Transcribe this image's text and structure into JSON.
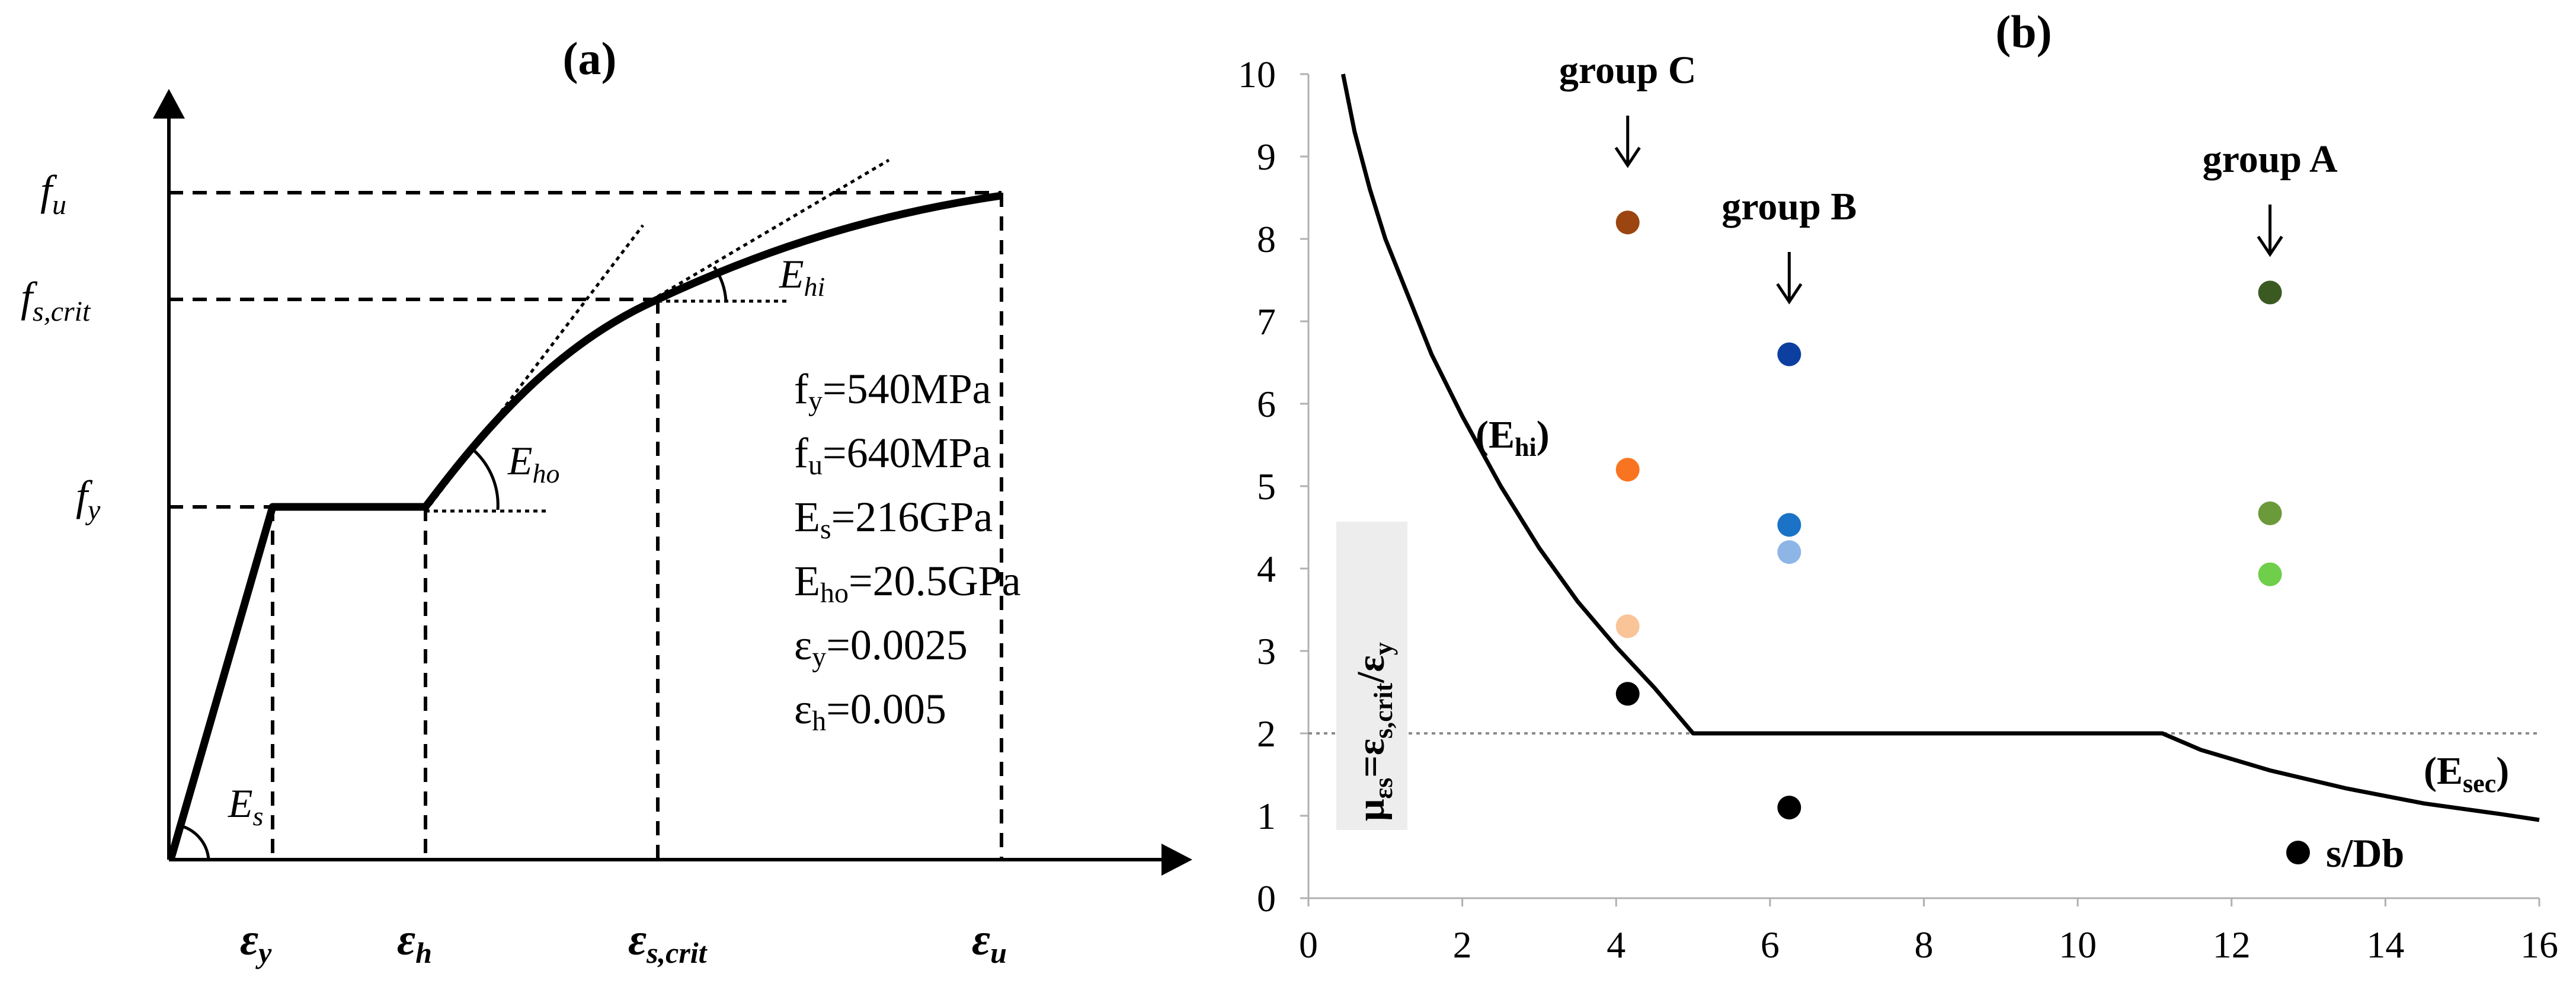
{
  "panel_a": {
    "label": "(a)",
    "y_labels": {
      "fu": {
        "main": "f",
        "sub": "u"
      },
      "fs_crit": {
        "main": "f",
        "sub": "s,crit"
      },
      "fy": {
        "main": "f",
        "sub": "y"
      }
    },
    "x_labels": {
      "ey": {
        "main": "ε",
        "sub": "y"
      },
      "eh": {
        "main": "ε",
        "sub": "h"
      },
      "es_crit": {
        "main": "ε",
        "sub": "s,crit"
      },
      "eu": {
        "main": "ε",
        "sub": "u"
      }
    },
    "angle_labels": {
      "es": {
        "main": "E",
        "sub": "s"
      },
      "eho": {
        "main": "E",
        "sub": "ho"
      },
      "ehi": {
        "main": "E",
        "sub": "hi"
      }
    },
    "properties": [
      {
        "sym": "f",
        "sub": "y",
        "val": "=540MPa"
      },
      {
        "sym": "f",
        "sub": "u",
        "val": "=640MPa"
      },
      {
        "sym": "E",
        "sub": "s",
        "val": "=216GPa"
      },
      {
        "sym": "E",
        "sub": "ho",
        "val": "=20.5GPa"
      },
      {
        "sym": "ε",
        "sub": "y",
        "val": "=0.0025"
      },
      {
        "sym": "ε",
        "sub": "h",
        "val": "=0.005"
      }
    ]
  },
  "chart_data": [
    {
      "type": "line",
      "panel": "(a)",
      "title": "(a)",
      "xlabel": "",
      "ylabel": "",
      "x": [
        "ε_y",
        "ε_h",
        "ε_s,crit",
        "ε_u"
      ],
      "y": [
        "f_y",
        "f_s,crit",
        "f_u"
      ],
      "series": [
        {
          "name": "stress-strain curve (schematic)"
        }
      ]
    },
    {
      "type": "scatter",
      "panel": "(b)",
      "title": "(b)",
      "xlabel": "",
      "ylabel": {
        "mu": "μ",
        "mu_sub": "εs",
        "eq": "=ε",
        "eq_sub": "s,crit",
        "slash": "/ε",
        "slash_sub": "y"
      },
      "xlim": [
        0,
        16
      ],
      "ylim": [
        0,
        10
      ],
      "x_ticks": [
        0,
        2,
        4,
        6,
        8,
        10,
        12,
        14,
        16
      ],
      "y_ticks": [
        0,
        1,
        2,
        3,
        4,
        5,
        6,
        7,
        8,
        9,
        10
      ],
      "reference_line": {
        "y": 2,
        "style": "dotted"
      },
      "curve_labels": [
        {
          "main": "(E",
          "sub": "hi",
          "end": ")"
        },
        {
          "main": "(E",
          "sub": "sec",
          "end": ")"
        }
      ],
      "curve": {
        "name": "μεs limit",
        "points": [
          [
            0.45,
            10
          ],
          [
            0.6,
            9.3
          ],
          [
            0.8,
            8.6
          ],
          [
            1.0,
            8.0
          ],
          [
            1.3,
            7.3
          ],
          [
            1.6,
            6.6
          ],
          [
            2.0,
            5.85
          ],
          [
            2.5,
            5.0
          ],
          [
            3.0,
            4.25
          ],
          [
            3.5,
            3.6
          ],
          [
            4.0,
            3.05
          ],
          [
            4.5,
            2.55
          ],
          [
            5.0,
            2.0
          ],
          [
            11.1,
            2.0
          ],
          [
            11.6,
            1.8
          ],
          [
            12.5,
            1.55
          ],
          [
            13.5,
            1.33
          ],
          [
            14.5,
            1.15
          ],
          [
            15.5,
            1.02
          ],
          [
            16.0,
            0.95
          ]
        ]
      },
      "groups": [
        {
          "name": "group C",
          "x": 4.15
        },
        {
          "name": "group B",
          "x": 6.25
        },
        {
          "name": "group A",
          "x": 12.5
        }
      ],
      "series": [
        {
          "name": "group C",
          "points": [
            {
              "x": 4.15,
              "y": 8.2,
              "color": "#9c4511"
            },
            {
              "x": 4.15,
              "y": 5.2,
              "color": "#f97420"
            },
            {
              "x": 4.15,
              "y": 3.3,
              "color": "#fac499"
            }
          ]
        },
        {
          "name": "group B",
          "points": [
            {
              "x": 6.25,
              "y": 6.6,
              "color": "#0d3fa0"
            },
            {
              "x": 6.25,
              "y": 4.53,
              "color": "#1a73c6"
            },
            {
              "x": 6.25,
              "y": 4.2,
              "color": "#8db6e6"
            }
          ]
        },
        {
          "name": "group A",
          "points": [
            {
              "x": 12.5,
              "y": 7.35,
              "color": "#3a5a22"
            },
            {
              "x": 12.5,
              "y": 4.67,
              "color": "#6b9a3a"
            },
            {
              "x": 12.5,
              "y": 3.93,
              "color": "#6fce4a"
            }
          ]
        },
        {
          "name": "s/Db",
          "points": [
            {
              "x": 4.15,
              "y": 2.48,
              "color": "#000000"
            },
            {
              "x": 6.25,
              "y": 1.1,
              "color": "#000000"
            }
          ]
        }
      ],
      "legend": {
        "label": "s/Db",
        "color": "#000000",
        "position": "bottom-right"
      }
    }
  ]
}
